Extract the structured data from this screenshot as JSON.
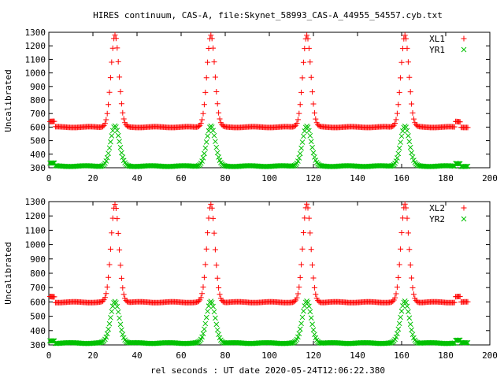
{
  "title": "HIRES continuum, CAS-A, file:Skynet_58993_CAS-A_44955_54557.cyb.txt",
  "xlabel": "rel seconds : UT date 2020-05-24T12:06:22.380",
  "colors": {
    "red": "#ff0000",
    "green": "#00c000",
    "axis": "#000000"
  },
  "chart_data": [
    {
      "type": "scatter",
      "ylabel": "Uncalibrated",
      "xlim": [
        0,
        200
      ],
      "ylim": [
        300,
        1300
      ],
      "xticks": [
        0,
        20,
        40,
        60,
        80,
        100,
        120,
        140,
        160,
        180,
        200
      ],
      "yticks": [
        300,
        400,
        500,
        600,
        700,
        800,
        900,
        1000,
        1100,
        1200,
        1300
      ],
      "legend_position": "top-right",
      "grid": false,
      "model": {
        "x_start": 0.5,
        "x_end": 190.0,
        "x_step": 0.5,
        "peak_centers": [
          30.0,
          73.5,
          117.0,
          161.5
        ],
        "cal_spikes": [
          1.5,
          185.5
        ]
      },
      "series": [
        {
          "name": "XL1",
          "marker": "plus",
          "color": "#ff0000",
          "baseline": 600,
          "peak_height": 680,
          "peak_sigma": 1.8,
          "cal_height": 40
        },
        {
          "name": "YR1",
          "marker": "cross",
          "color": "#00c000",
          "baseline": 312,
          "peak_height": 295,
          "peak_sigma": 2.0,
          "cal_height": 20
        }
      ]
    },
    {
      "type": "scatter",
      "ylabel": "Uncalibrated",
      "xlim": [
        0,
        200
      ],
      "ylim": [
        300,
        1300
      ],
      "xticks": [
        0,
        20,
        40,
        60,
        80,
        100,
        120,
        140,
        160,
        180,
        200
      ],
      "yticks": [
        300,
        400,
        500,
        600,
        700,
        800,
        900,
        1000,
        1100,
        1200,
        1300
      ],
      "legend_position": "top-right",
      "grid": false,
      "model": {
        "x_start": 0.5,
        "x_end": 190.0,
        "x_step": 0.5,
        "peak_centers": [
          30.0,
          73.5,
          117.0,
          161.5
        ],
        "cal_spikes": [
          1.5,
          185.5
        ]
      },
      "series": [
        {
          "name": "XL2",
          "marker": "plus",
          "color": "#ff0000",
          "baseline": 598,
          "peak_height": 682,
          "peak_sigma": 1.8,
          "cal_height": 40
        },
        {
          "name": "YR2",
          "marker": "cross",
          "color": "#00c000",
          "baseline": 313,
          "peak_height": 292,
          "peak_sigma": 2.0,
          "cal_height": 18
        }
      ]
    }
  ]
}
